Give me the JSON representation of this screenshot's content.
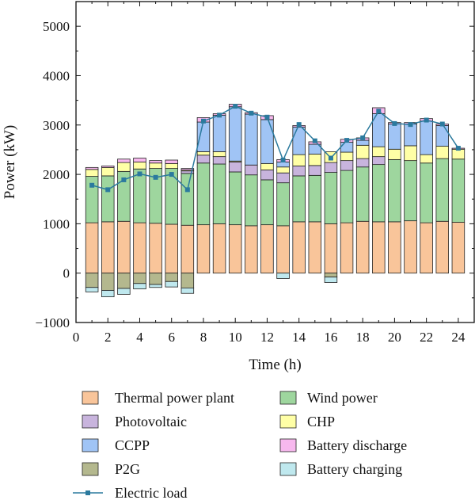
{
  "chart_data": {
    "type": "bar",
    "xlabel": "Time (h)",
    "ylabel": "Power (kW)",
    "xlim": [
      0,
      25
    ],
    "ylim": [
      -1000,
      5500
    ],
    "xticks": [
      0,
      2,
      4,
      6,
      8,
      10,
      12,
      14,
      16,
      18,
      20,
      22,
      24
    ],
    "yticks": [
      -1000,
      0,
      1000,
      2000,
      3000,
      4000,
      5000
    ],
    "x": [
      1,
      2,
      3,
      4,
      5,
      6,
      7,
      8,
      9,
      10,
      11,
      12,
      13,
      14,
      15,
      16,
      17,
      18,
      19,
      20,
      21,
      22,
      23,
      24
    ],
    "series": [
      {
        "name": "Thermal power plant",
        "kind": "stack",
        "color": "#f9c59a",
        "values": [
          1020,
          1040,
          1050,
          1020,
          1010,
          990,
          970,
          980,
          1000,
          980,
          960,
          980,
          960,
          1040,
          1040,
          1000,
          1020,
          1050,
          1040,
          1040,
          1060,
          1020,
          1050,
          1030
        ]
      },
      {
        "name": "Wind power",
        "kind": "stack",
        "color": "#9ed69e",
        "values": [
          940,
          930,
          1010,
          1090,
          1110,
          1130,
          1050,
          1250,
          1210,
          1070,
          1030,
          910,
          870,
          930,
          940,
          1040,
          1060,
          1100,
          1160,
          1260,
          1220,
          1210,
          1270,
          1280
        ]
      },
      {
        "name": "Photovoltaic",
        "kind": "stack",
        "color": "#c8b4dd",
        "values": [
          0,
          0,
          0,
          0,
          0,
          0,
          50,
          160,
          150,
          200,
          200,
          200,
          200,
          200,
          200,
          200,
          200,
          170,
          160,
          0,
          0,
          0,
          0,
          0
        ]
      },
      {
        "name": "CHP",
        "kind": "stack",
        "color": "#ffffa6",
        "values": [
          140,
          170,
          180,
          140,
          110,
          100,
          20,
          70,
          100,
          20,
          0,
          130,
          120,
          230,
          230,
          220,
          170,
          270,
          200,
          210,
          300,
          170,
          250,
          200
        ]
      },
      {
        "name": "CCPP",
        "kind": "stack",
        "color": "#a0c4f5",
        "values": [
          0,
          0,
          0,
          0,
          0,
          0,
          0,
          600,
          740,
          1100,
          1030,
          890,
          100,
          560,
          200,
          0,
          200,
          100,
          670,
          510,
          440,
          680,
          420,
          0
        ]
      },
      {
        "name": "Battery discharge",
        "kind": "stack",
        "color": "#f7b8ee",
        "values": [
          40,
          30,
          70,
          80,
          50,
          70,
          30,
          90,
          30,
          50,
          30,
          80,
          50,
          30,
          50,
          0,
          60,
          50,
          120,
          30,
          30,
          50,
          30,
          20
        ]
      },
      {
        "name": "P2G",
        "kind": "neg",
        "color": "#b4b88e",
        "values": [
          -290,
          -350,
          -310,
          -210,
          -230,
          -170,
          -300,
          0,
          0,
          0,
          0,
          0,
          0,
          0,
          0,
          -80,
          0,
          0,
          0,
          0,
          0,
          0,
          0,
          0
        ]
      },
      {
        "name": "Battery charging",
        "kind": "neg",
        "color": "#bfe8ee",
        "values": [
          -90,
          -130,
          -120,
          -110,
          -60,
          -110,
          -110,
          0,
          0,
          0,
          0,
          0,
          -110,
          0,
          0,
          -110,
          0,
          0,
          0,
          0,
          0,
          0,
          0,
          0
        ]
      },
      {
        "name": "Electric load",
        "kind": "line",
        "color": "#2b7a9e",
        "values": [
          1780,
          1690,
          1890,
          2010,
          1940,
          2000,
          1690,
          3080,
          3200,
          3380,
          3240,
          3160,
          2290,
          3010,
          2680,
          2330,
          2690,
          2740,
          3280,
          3030,
          3010,
          3100,
          3020,
          2530
        ]
      }
    ],
    "legend": {
      "placement": "bottom",
      "columns": 2,
      "entries": [
        "Thermal power plant",
        "Wind power",
        "Photovoltaic",
        "CHP",
        "CCPP",
        "Battery discharge",
        "P2G",
        "Battery charging",
        "Electric load"
      ]
    },
    "grid": false
  }
}
